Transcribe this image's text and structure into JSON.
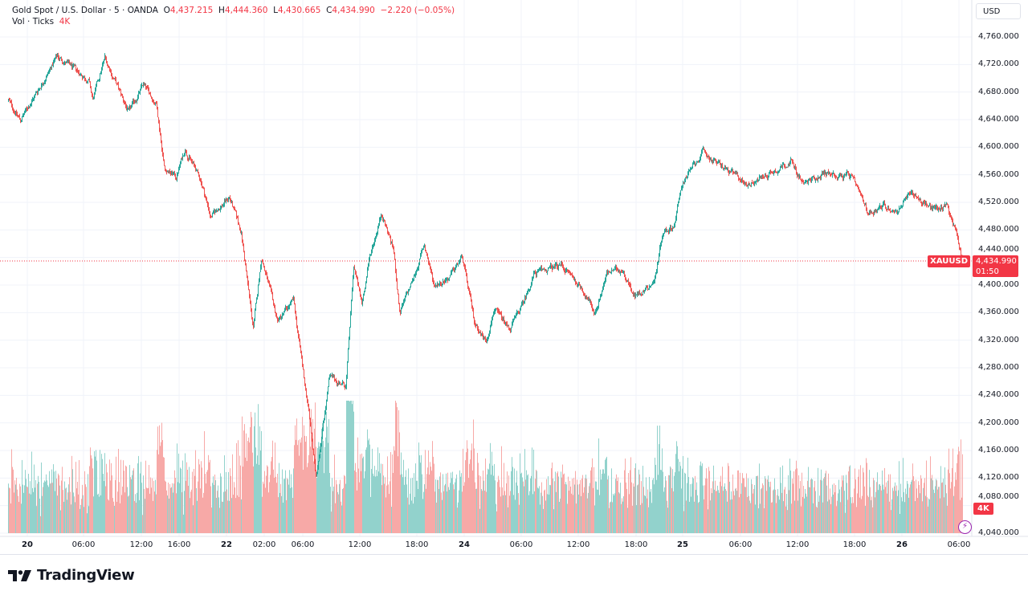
{
  "legend": {
    "symbol": "Gold Spot / U.S. Dollar · 5 · OANDA",
    "o_label": "O",
    "o_value": "4,437.215",
    "h_label": "H",
    "h_value": "4,444.360",
    "l_label": "L",
    "l_value": "4,430.665",
    "c_label": "C",
    "c_value": "4,434.990",
    "change": "−2.220 (−0.05%)",
    "vol_label": "Vol · Ticks",
    "vol_value": "4K"
  },
  "currency_button": "USD",
  "tags": {
    "symbol": "XAUUSD",
    "price": "4,434.990",
    "countdown": "01:50",
    "volume": "4K"
  },
  "logo_text": "TradingView",
  "colors": {
    "up": "#26a69a",
    "down": "#ef5350",
    "up_volume": "#92d2cc",
    "down_volume": "#f7a9a7",
    "price_line": "#f23645",
    "grid": "#f0f3fa",
    "alert_icon": "#9c27b0"
  },
  "icons": {
    "alert": "lightning-icon",
    "logo": "tradingview-logo-icon"
  },
  "chart_data": {
    "type": "candlestick",
    "interval": "5",
    "source": "OANDA",
    "grid": true,
    "y_ticks": [
      "4,760.000",
      "4,720.000",
      "4,680.000",
      "4,640.000",
      "4,600.000",
      "4,560.000",
      "4,520.000",
      "4,480.000",
      "4,440.000",
      "4,400.000",
      "4,360.000",
      "4,320.000",
      "4,280.000",
      "4,240.000",
      "4,200.000",
      "4,160.000",
      "4,120.000",
      "4,080.000",
      "4,040.000"
    ],
    "ylim": [
      4040,
      4760
    ],
    "x_ticks": [
      {
        "label": "20",
        "t": "20 00:00",
        "day": true
      },
      {
        "label": "06:00",
        "t": "20 06:00"
      },
      {
        "label": "12:00",
        "t": "20 12:00"
      },
      {
        "label": "16:00",
        "t": "20 16:00"
      },
      {
        "label": "22",
        "t": "22 00:00",
        "day": true
      },
      {
        "label": "02:00",
        "t": "22 02:00"
      },
      {
        "label": "06:00",
        "t": "22 06:00"
      },
      {
        "label": "12:00",
        "t": "22 12:00"
      },
      {
        "label": "18:00",
        "t": "22 18:00"
      },
      {
        "label": "24",
        "t": "24 00:00",
        "day": true
      },
      {
        "label": "06:00",
        "t": "24 06:00"
      },
      {
        "label": "12:00",
        "t": "24 12:00"
      },
      {
        "label": "18:00",
        "t": "24 18:00"
      },
      {
        "label": "25",
        "t": "25 00:00",
        "day": true
      },
      {
        "label": "06:00",
        "t": "25 06:00"
      },
      {
        "label": "12:00",
        "t": "25 12:00"
      },
      {
        "label": "18:00",
        "t": "25 18:00"
      },
      {
        "label": "26",
        "t": "26 00:00",
        "day": true
      },
      {
        "label": "06:00",
        "t": "26 06:00"
      }
    ],
    "last_price": 4434.99,
    "price_path": [
      {
        "t": "19 22:00",
        "p": 4668
      },
      {
        "t": "19 23:15",
        "p": 4639
      },
      {
        "t": "20 03:10",
        "p": 4732
      },
      {
        "t": "20 06:30",
        "p": 4697
      },
      {
        "t": "20 06:55",
        "p": 4668
      },
      {
        "t": "20 08:10",
        "p": 4730
      },
      {
        "t": "20 10:40",
        "p": 4650
      },
      {
        "t": "20 12:10",
        "p": 4691
      },
      {
        "t": "20 13:35",
        "p": 4662
      },
      {
        "t": "20 14:25",
        "p": 4569
      },
      {
        "t": "20 15:40",
        "p": 4557
      },
      {
        "t": "20 19:47",
        "p": 4598
      },
      {
        "t": "21 06:37",
        "p": 4551
      },
      {
        "t": "21 13:07",
        "p": 4499
      },
      {
        "t": "22 00:08",
        "p": 4528
      },
      {
        "t": "22 00:46",
        "p": 4476
      },
      {
        "t": "22 01:24",
        "p": 4336
      },
      {
        "t": "22 01:50",
        "p": 4441
      },
      {
        "t": "22 03:20",
        "p": 4348
      },
      {
        "t": "22 05:00",
        "p": 4377
      },
      {
        "t": "22 06:40",
        "p": 4208
      },
      {
        "t": "22 07:20",
        "p": 4120
      },
      {
        "t": "22 08:45",
        "p": 4266
      },
      {
        "t": "22 10:30",
        "p": 4254
      },
      {
        "t": "22 11:20",
        "p": 4429
      },
      {
        "t": "22 12:10",
        "p": 4371
      },
      {
        "t": "22 13:00",
        "p": 4441
      },
      {
        "t": "22 14:15",
        "p": 4505
      },
      {
        "t": "22 15:30",
        "p": 4452
      },
      {
        "t": "22 16:10",
        "p": 4359
      },
      {
        "t": "22 17:40",
        "p": 4412
      },
      {
        "t": "22 22:35",
        "p": 4458
      },
      {
        "t": "23 04:40",
        "p": 4400
      },
      {
        "t": "23 14:50",
        "p": 4412
      },
      {
        "t": "23 22:28",
        "p": 4441
      },
      {
        "t": "24 01:00",
        "p": 4348
      },
      {
        "t": "24 02:15",
        "p": 4318
      },
      {
        "t": "24 03:05",
        "p": 4365
      },
      {
        "t": "24 04:45",
        "p": 4336
      },
      {
        "t": "24 06:05",
        "p": 4371
      },
      {
        "t": "24 07:20",
        "p": 4417
      },
      {
        "t": "24 10:15",
        "p": 4429
      },
      {
        "t": "24 12:25",
        "p": 4394
      },
      {
        "t": "24 13:40",
        "p": 4359
      },
      {
        "t": "24 14:55",
        "p": 4417
      },
      {
        "t": "24 16:35",
        "p": 4423
      },
      {
        "t": "24 17:50",
        "p": 4383
      },
      {
        "t": "24 20:20",
        "p": 4406
      },
      {
        "t": "24 21:20",
        "p": 4476
      },
      {
        "t": "24 22:50",
        "p": 4487
      },
      {
        "t": "25 00:00",
        "p": 4551
      },
      {
        "t": "25 02:05",
        "p": 4592
      },
      {
        "t": "25 05:00",
        "p": 4563
      },
      {
        "t": "25 06:40",
        "p": 4546
      },
      {
        "t": "25 09:10",
        "p": 4563
      },
      {
        "t": "25 11:15",
        "p": 4580
      },
      {
        "t": "25 12:35",
        "p": 4546
      },
      {
        "t": "25 14:40",
        "p": 4563
      },
      {
        "t": "25 17:35",
        "p": 4557
      },
      {
        "t": "25 19:38",
        "p": 4505
      },
      {
        "t": "25 21:40",
        "p": 4516
      },
      {
        "t": "25 23:10",
        "p": 4505
      },
      {
        "t": "26 01:00",
        "p": 4534
      },
      {
        "t": "26 03:05",
        "p": 4511
      },
      {
        "t": "26 04:45",
        "p": 4516
      },
      {
        "t": "26 05:40",
        "p": 4476
      },
      {
        "t": "26 06:20",
        "p": 4434.99
      }
    ]
  }
}
